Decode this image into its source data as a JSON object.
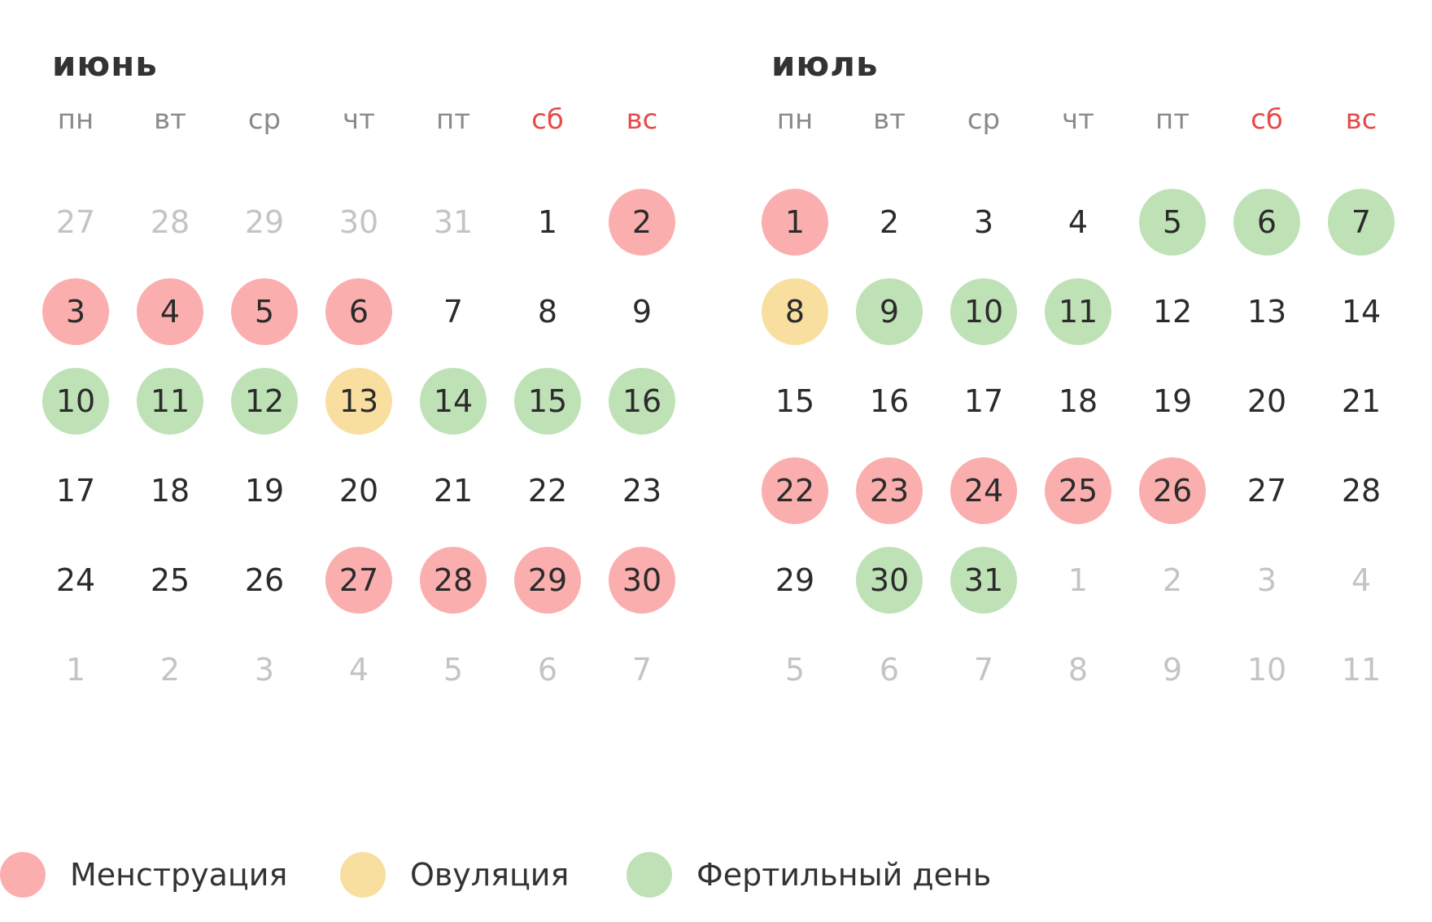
{
  "colors": {
    "menstruation": "#fbaeae",
    "ovulation": "#f8dfa0",
    "fertile": "#bee2b6",
    "weekend_header": "#e84a4a",
    "other_month_text": "#c4c4c4"
  },
  "weekdays": [
    {
      "label": "пн",
      "weekend": false
    },
    {
      "label": "вт",
      "weekend": false
    },
    {
      "label": "ср",
      "weekend": false
    },
    {
      "label": "чт",
      "weekend": false
    },
    {
      "label": "пт",
      "weekend": false
    },
    {
      "label": "сб",
      "weekend": true
    },
    {
      "label": "вс",
      "weekend": true
    }
  ],
  "months": [
    {
      "title": "июнь",
      "weeks": [
        [
          {
            "day": "27",
            "current": false,
            "type": ""
          },
          {
            "day": "28",
            "current": false,
            "type": ""
          },
          {
            "day": "29",
            "current": false,
            "type": ""
          },
          {
            "day": "30",
            "current": false,
            "type": ""
          },
          {
            "day": "31",
            "current": false,
            "type": ""
          },
          {
            "day": "1",
            "current": true,
            "type": ""
          },
          {
            "day": "2",
            "current": true,
            "type": "menstruation"
          }
        ],
        [
          {
            "day": "3",
            "current": true,
            "type": "menstruation"
          },
          {
            "day": "4",
            "current": true,
            "type": "menstruation"
          },
          {
            "day": "5",
            "current": true,
            "type": "menstruation"
          },
          {
            "day": "6",
            "current": true,
            "type": "menstruation"
          },
          {
            "day": "7",
            "current": true,
            "type": ""
          },
          {
            "day": "8",
            "current": true,
            "type": ""
          },
          {
            "day": "9",
            "current": true,
            "type": ""
          }
        ],
        [
          {
            "day": "10",
            "current": true,
            "type": "fertile"
          },
          {
            "day": "11",
            "current": true,
            "type": "fertile"
          },
          {
            "day": "12",
            "current": true,
            "type": "fertile"
          },
          {
            "day": "13",
            "current": true,
            "type": "ovulation"
          },
          {
            "day": "14",
            "current": true,
            "type": "fertile"
          },
          {
            "day": "15",
            "current": true,
            "type": "fertile"
          },
          {
            "day": "16",
            "current": true,
            "type": "fertile"
          }
        ],
        [
          {
            "day": "17",
            "current": true,
            "type": ""
          },
          {
            "day": "18",
            "current": true,
            "type": ""
          },
          {
            "day": "19",
            "current": true,
            "type": ""
          },
          {
            "day": "20",
            "current": true,
            "type": ""
          },
          {
            "day": "21",
            "current": true,
            "type": ""
          },
          {
            "day": "22",
            "current": true,
            "type": ""
          },
          {
            "day": "23",
            "current": true,
            "type": ""
          }
        ],
        [
          {
            "day": "24",
            "current": true,
            "type": ""
          },
          {
            "day": "25",
            "current": true,
            "type": ""
          },
          {
            "day": "26",
            "current": true,
            "type": ""
          },
          {
            "day": "27",
            "current": true,
            "type": "menstruation"
          },
          {
            "day": "28",
            "current": true,
            "type": "menstruation"
          },
          {
            "day": "29",
            "current": true,
            "type": "menstruation"
          },
          {
            "day": "30",
            "current": true,
            "type": "menstruation"
          }
        ],
        [
          {
            "day": "1",
            "current": false,
            "type": ""
          },
          {
            "day": "2",
            "current": false,
            "type": ""
          },
          {
            "day": "3",
            "current": false,
            "type": ""
          },
          {
            "day": "4",
            "current": false,
            "type": ""
          },
          {
            "day": "5",
            "current": false,
            "type": ""
          },
          {
            "day": "6",
            "current": false,
            "type": ""
          },
          {
            "day": "7",
            "current": false,
            "type": ""
          }
        ]
      ]
    },
    {
      "title": "июль",
      "weeks": [
        [
          {
            "day": "1",
            "current": true,
            "type": "menstruation"
          },
          {
            "day": "2",
            "current": true,
            "type": ""
          },
          {
            "day": "3",
            "current": true,
            "type": ""
          },
          {
            "day": "4",
            "current": true,
            "type": ""
          },
          {
            "day": "5",
            "current": true,
            "type": "fertile"
          },
          {
            "day": "6",
            "current": true,
            "type": "fertile"
          },
          {
            "day": "7",
            "current": true,
            "type": "fertile"
          }
        ],
        [
          {
            "day": "8",
            "current": true,
            "type": "ovulation"
          },
          {
            "day": "9",
            "current": true,
            "type": "fertile"
          },
          {
            "day": "10",
            "current": true,
            "type": "fertile"
          },
          {
            "day": "11",
            "current": true,
            "type": "fertile"
          },
          {
            "day": "12",
            "current": true,
            "type": ""
          },
          {
            "day": "13",
            "current": true,
            "type": ""
          },
          {
            "day": "14",
            "current": true,
            "type": ""
          }
        ],
        [
          {
            "day": "15",
            "current": true,
            "type": ""
          },
          {
            "day": "16",
            "current": true,
            "type": ""
          },
          {
            "day": "17",
            "current": true,
            "type": ""
          },
          {
            "day": "18",
            "current": true,
            "type": ""
          },
          {
            "day": "19",
            "current": true,
            "type": ""
          },
          {
            "day": "20",
            "current": true,
            "type": ""
          },
          {
            "day": "21",
            "current": true,
            "type": ""
          }
        ],
        [
          {
            "day": "22",
            "current": true,
            "type": "menstruation"
          },
          {
            "day": "23",
            "current": true,
            "type": "menstruation"
          },
          {
            "day": "24",
            "current": true,
            "type": "menstruation"
          },
          {
            "day": "25",
            "current": true,
            "type": "menstruation"
          },
          {
            "day": "26",
            "current": true,
            "type": "menstruation"
          },
          {
            "day": "27",
            "current": true,
            "type": ""
          },
          {
            "day": "28",
            "current": true,
            "type": ""
          }
        ],
        [
          {
            "day": "29",
            "current": true,
            "type": ""
          },
          {
            "day": "30",
            "current": true,
            "type": "fertile"
          },
          {
            "day": "31",
            "current": true,
            "type": "fertile"
          },
          {
            "day": "1",
            "current": false,
            "type": ""
          },
          {
            "day": "2",
            "current": false,
            "type": ""
          },
          {
            "day": "3",
            "current": false,
            "type": ""
          },
          {
            "day": "4",
            "current": false,
            "type": ""
          }
        ],
        [
          {
            "day": "5",
            "current": false,
            "type": ""
          },
          {
            "day": "6",
            "current": false,
            "type": ""
          },
          {
            "day": "7",
            "current": false,
            "type": ""
          },
          {
            "day": "8",
            "current": false,
            "type": ""
          },
          {
            "day": "9",
            "current": false,
            "type": ""
          },
          {
            "day": "10",
            "current": false,
            "type": ""
          },
          {
            "day": "11",
            "current": false,
            "type": ""
          }
        ]
      ]
    }
  ],
  "legend": [
    {
      "key": "menstruation",
      "label": "Менструация"
    },
    {
      "key": "ovulation",
      "label": "Овуляция"
    },
    {
      "key": "fertile",
      "label": "Фертильный день"
    }
  ]
}
